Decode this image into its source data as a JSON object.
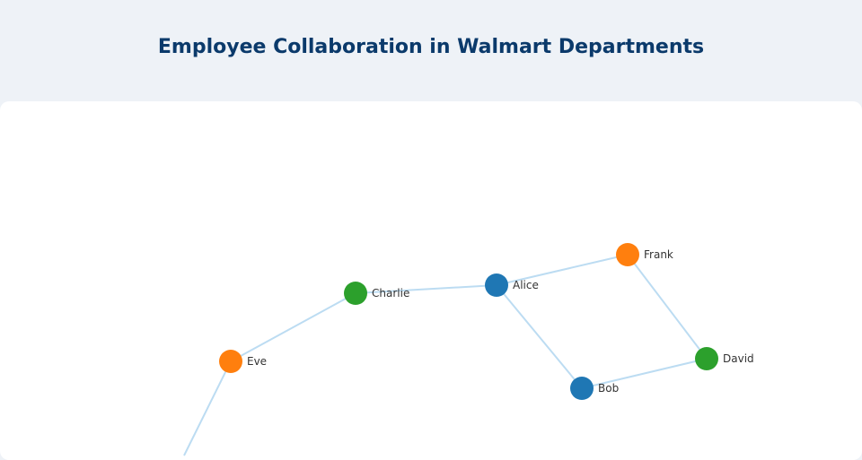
{
  "page": {
    "title": "Employee Collaboration in Walmart Departments"
  },
  "colors": {
    "group_blue": "#1f77b4",
    "group_orange": "#ff7f0e",
    "group_green": "#2ca02c",
    "edge": "#bcdcf2",
    "title": "#0b3a6b"
  },
  "graph": {
    "nodes": [
      {
        "id": "Alice",
        "label": "Alice",
        "group": "group_blue"
      },
      {
        "id": "Bob",
        "label": "Bob",
        "group": "group_blue"
      },
      {
        "id": "Charlie",
        "label": "Charlie",
        "group": "group_green"
      },
      {
        "id": "David",
        "label": "David",
        "group": "group_green"
      },
      {
        "id": "Eve",
        "label": "Eve",
        "group": "group_orange"
      },
      {
        "id": "Frank",
        "label": "Frank",
        "group": "group_orange"
      }
    ],
    "edges": [
      {
        "source": "Alice",
        "target": "Frank"
      },
      {
        "source": "Alice",
        "target": "Charlie"
      },
      {
        "source": "Alice",
        "target": "Bob"
      },
      {
        "source": "Frank",
        "target": "David"
      },
      {
        "source": "Bob",
        "target": "David"
      },
      {
        "source": "Charlie",
        "target": "Eve"
      }
    ]
  }
}
